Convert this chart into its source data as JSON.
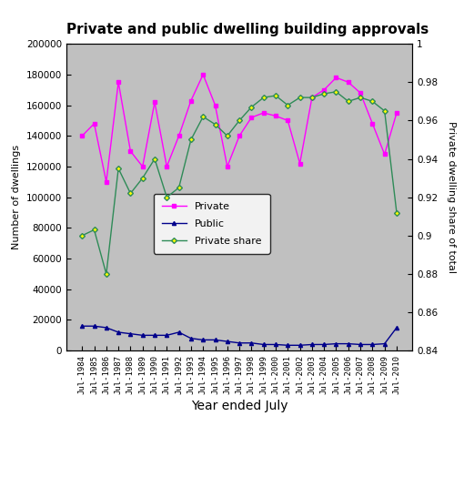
{
  "title": "Private and public dwelling building approvals",
  "xlabel": "Year ended July",
  "ylabel_left": "Number of dwellings",
  "ylabel_right": "Private dwelling share of total",
  "years": [
    "Jul-1984",
    "Jul-1985",
    "Jul-1986",
    "Jul-1987",
    "Jul-1988",
    "Jul-1989",
    "Jul-1990",
    "Jul-1991",
    "Jul-1992",
    "Jul-1993",
    "Jul-1994",
    "Jul-1995",
    "Jul-1996",
    "Jul-1997",
    "Jul-1998",
    "Jul-1999",
    "Jul-2000",
    "Jul-2001",
    "Jul-2002",
    "Jul-2003",
    "Jul-2004",
    "Jul-2005",
    "Jul-2006",
    "Jul-2007",
    "Jul-2008",
    "Jul-2009",
    "Jul-2010"
  ],
  "private": [
    140000,
    148000,
    110000,
    175000,
    130000,
    120000,
    162000,
    120000,
    140000,
    163000,
    180000,
    160000,
    120000,
    140000,
    152000,
    155000,
    153000,
    150000,
    122000,
    165000,
    170000,
    178000,
    175000,
    168000,
    148000,
    128000,
    155000
  ],
  "public": [
    16000,
    16000,
    15000,
    12000,
    11000,
    10000,
    10000,
    10000,
    12000,
    8000,
    7000,
    7000,
    6000,
    5000,
    5000,
    4000,
    4000,
    3500,
    3500,
    4000,
    4000,
    4500,
    4500,
    4000,
    4000,
    4500,
    15000
  ],
  "private_share": [
    0.9,
    0.903,
    0.88,
    0.935,
    0.922,
    0.93,
    0.94,
    0.92,
    0.925,
    0.95,
    0.962,
    0.958,
    0.952,
    0.96,
    0.967,
    0.972,
    0.973,
    0.968,
    0.972,
    0.972,
    0.974,
    0.975,
    0.97,
    0.972,
    0.97,
    0.965,
    0.912
  ],
  "private_color": "#ff00ff",
  "public_color": "#00008b",
  "share_color": "#2e8b57",
  "bg_color": "#c0c0c0",
  "ylim_left": [
    0,
    200000
  ],
  "ylim_right": [
    0.84,
    1.0
  ],
  "yticks_left": [
    0,
    20000,
    40000,
    60000,
    80000,
    100000,
    120000,
    140000,
    160000,
    180000,
    200000
  ],
  "yticks_right": [
    0.84,
    0.86,
    0.88,
    0.9,
    0.92,
    0.94,
    0.96,
    0.98,
    1.0
  ],
  "legend_labels": [
    "Private",
    "Public",
    "Private share"
  ]
}
